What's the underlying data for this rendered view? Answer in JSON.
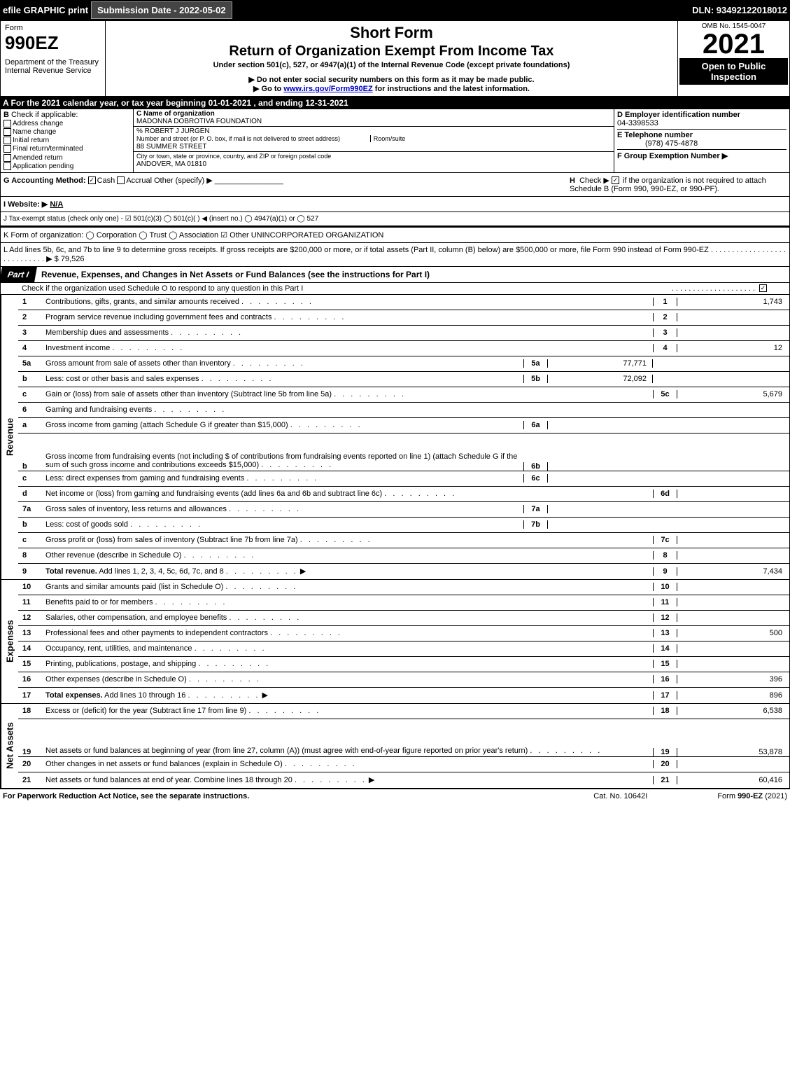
{
  "banner": {
    "efile": "efile GRAPHIC print",
    "submission": "Submission Date - 2022-05-02",
    "dln": "DLN: 93492122018012"
  },
  "header": {
    "form_word": "Form",
    "form_num": "990EZ",
    "dept": "Department of the Treasury",
    "irs": "Internal Revenue Service",
    "short_form": "Short Form",
    "title": "Return of Organization Exempt From Income Tax",
    "subtitle": "Under section 501(c), 527, or 4947(a)(1) of the Internal Revenue Code (except private foundations)",
    "note1": "▶ Do not enter social security numbers on this form as it may be made public.",
    "note2": "▶ Go to www.irs.gov/Form990EZ for instructions and the latest information.",
    "omb": "OMB No. 1545-0047",
    "year": "2021",
    "inspect": "Open to Public Inspection"
  },
  "line_a": "A  For the 2021 calendar year, or tax year beginning 01-01-2021 , and ending 12-31-2021",
  "section_b": {
    "label": "B",
    "check_label": "Check if applicable:",
    "opts": [
      "Address change",
      "Name change",
      "Initial return",
      "Final return/terminated",
      "Amended return",
      "Application pending"
    ]
  },
  "section_c": {
    "c_label": "C Name of organization",
    "org_name": "MADONNA DOBROTIVA FOUNDATION",
    "care_of": "% ROBERT J JURGEN",
    "street_label": "Number and street (or P. O. box, if mail is not delivered to street address)",
    "room_label": "Room/suite",
    "street": "88 SUMMER STREET",
    "city_label": "City or town, state or province, country, and ZIP or foreign postal code",
    "city": "ANDOVER, MA  01810"
  },
  "section_d": {
    "d_label": "D Employer identification number",
    "ein": "04-3398533",
    "e_label": "E Telephone number",
    "phone": "(978) 475-4878",
    "f_label": "F Group Exemption Number  ▶"
  },
  "section_g": {
    "g_label": "G Accounting Method:",
    "cash": "Cash",
    "accrual": "Accrual",
    "other": "Other (specify) ▶",
    "h_label": "H",
    "h_text": "Check ▶",
    "h_rest": "if the organization is not required to attach Schedule B (Form 990, 990-EZ, or 990-PF)."
  },
  "website": {
    "label": "I Website: ▶",
    "value": "N/A"
  },
  "tax_status": "J Tax-exempt status (check only one) - ☑ 501(c)(3)  ◯ 501(c)(  ) ◀ (insert no.)  ◯ 4947(a)(1) or  ◯ 527",
  "k_line": "K Form of organization:   ◯ Corporation   ◯ Trust   ◯ Association   ☑ Other UNINCORPORATED ORGANIZATION",
  "l_line": "L Add lines 5b, 6c, and 7b to line 9 to determine gross receipts. If gross receipts are $200,000 or more, or if total assets (Part II, column (B) below) are $500,000 or more, file Form 990 instead of Form 990-EZ  .  .  .  .  .  .  .  .  .  .  .  .  .  .  .  .  .  .  .  .  .  .  .  .  .  .  .  .  ▶ $ 79,526",
  "part1": {
    "tab": "Part I",
    "title": "Revenue, Expenses, and Changes in Net Assets or Fund Balances (see the instructions for Part I)",
    "check_line": "Check if the organization used Schedule O to respond to any question in this Part I"
  },
  "sections": {
    "revenue": "Revenue",
    "expenses": "Expenses",
    "netassets": "Net Assets"
  },
  "lines": [
    {
      "n": "1",
      "d": "Contributions, gifts, grants, and similar amounts received",
      "c": "1",
      "v": "1,743"
    },
    {
      "n": "2",
      "d": "Program service revenue including government fees and contracts",
      "c": "2",
      "v": ""
    },
    {
      "n": "3",
      "d": "Membership dues and assessments",
      "c": "3",
      "v": ""
    },
    {
      "n": "4",
      "d": "Investment income",
      "c": "4",
      "v": "12"
    },
    {
      "n": "5a",
      "d": "Gross amount from sale of assets other than inventory",
      "sub": "5a",
      "sv": "77,771",
      "shaded": true
    },
    {
      "n": "b",
      "d": "Less: cost or other basis and sales expenses",
      "sub": "5b",
      "sv": "72,092",
      "shaded": true
    },
    {
      "n": "c",
      "d": "Gain or (loss) from sale of assets other than inventory (Subtract line 5b from line 5a)",
      "c": "5c",
      "v": "5,679"
    },
    {
      "n": "6",
      "d": "Gaming and fundraising events",
      "shaded": true,
      "noCode": true
    },
    {
      "n": "a",
      "d": "Gross income from gaming (attach Schedule G if greater than $15,000)",
      "sub": "6a",
      "sv": "",
      "shaded": true
    },
    {
      "n": "b",
      "d": "Gross income from fundraising events (not including $                    of contributions from fundraising events reported on line 1) (attach Schedule G if the sum of such gross income and contributions exceeds $15,000)",
      "sub": "6b",
      "sv": "",
      "shaded": true,
      "tall": true
    },
    {
      "n": "c",
      "d": "Less: direct expenses from gaming and fundraising events",
      "sub": "6c",
      "sv": "",
      "shaded": true
    },
    {
      "n": "d",
      "d": "Net income or (loss) from gaming and fundraising events (add lines 6a and 6b and subtract line 6c)",
      "c": "6d",
      "v": ""
    },
    {
      "n": "7a",
      "d": "Gross sales of inventory, less returns and allowances",
      "sub": "7a",
      "sv": "",
      "shaded": true
    },
    {
      "n": "b",
      "d": "Less: cost of goods sold",
      "sub": "7b",
      "sv": "",
      "shaded": true
    },
    {
      "n": "c",
      "d": "Gross profit or (loss) from sales of inventory (Subtract line 7b from line 7a)",
      "c": "7c",
      "v": ""
    },
    {
      "n": "8",
      "d": "Other revenue (describe in Schedule O)",
      "c": "8",
      "v": ""
    },
    {
      "n": "9",
      "d": "Total revenue. Add lines 1, 2, 3, 4, 5c, 6d, 7c, and 8",
      "c": "9",
      "v": "7,434",
      "bold": true,
      "arrow": true
    }
  ],
  "exp_lines": [
    {
      "n": "10",
      "d": "Grants and similar amounts paid (list in Schedule O)",
      "c": "10",
      "v": ""
    },
    {
      "n": "11",
      "d": "Benefits paid to or for members",
      "c": "11",
      "v": ""
    },
    {
      "n": "12",
      "d": "Salaries, other compensation, and employee benefits",
      "c": "12",
      "v": ""
    },
    {
      "n": "13",
      "d": "Professional fees and other payments to independent contractors",
      "c": "13",
      "v": "500"
    },
    {
      "n": "14",
      "d": "Occupancy, rent, utilities, and maintenance",
      "c": "14",
      "v": ""
    },
    {
      "n": "15",
      "d": "Printing, publications, postage, and shipping",
      "c": "15",
      "v": ""
    },
    {
      "n": "16",
      "d": "Other expenses (describe in Schedule O)",
      "c": "16",
      "v": "396"
    },
    {
      "n": "17",
      "d": "Total expenses. Add lines 10 through 16",
      "c": "17",
      "v": "896",
      "bold": true,
      "arrow": true
    }
  ],
  "net_lines": [
    {
      "n": "18",
      "d": "Excess or (deficit) for the year (Subtract line 17 from line 9)",
      "c": "18",
      "v": "6,538"
    },
    {
      "n": "19",
      "d": "Net assets or fund balances at beginning of year (from line 27, column (A)) (must agree with end-of-year figure reported on prior year's return)",
      "c": "19",
      "v": "53,878",
      "tall": true
    },
    {
      "n": "20",
      "d": "Other changes in net assets or fund balances (explain in Schedule O)",
      "c": "20",
      "v": ""
    },
    {
      "n": "21",
      "d": "Net assets or fund balances at end of year. Combine lines 18 through 20",
      "c": "21",
      "v": "60,416",
      "arrow": true
    }
  ],
  "footer": {
    "left": "For Paperwork Reduction Act Notice, see the separate instructions.",
    "mid": "Cat. No. 10642I",
    "right": "Form 990-EZ (2021)"
  }
}
